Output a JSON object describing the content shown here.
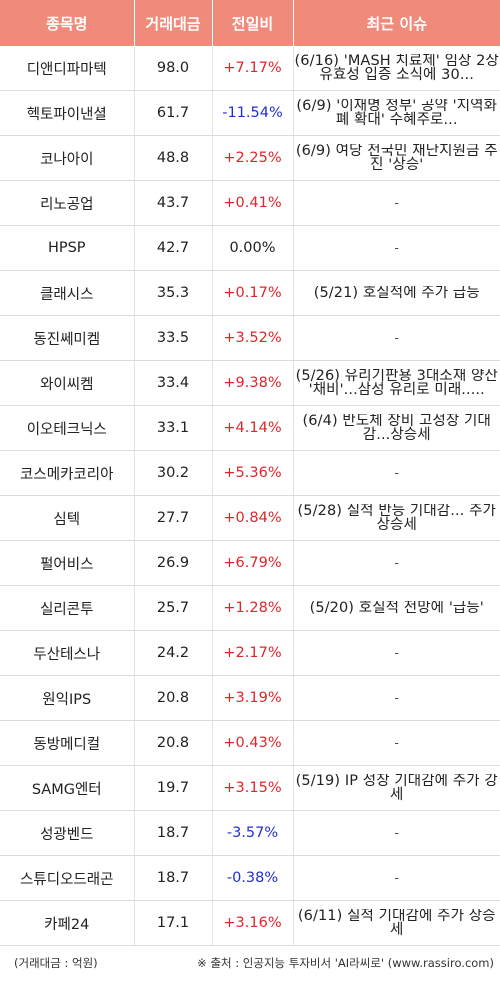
{
  "table": {
    "headers": [
      "종목명",
      "거래대금",
      "전일비",
      "최근 이슈"
    ],
    "rows": [
      {
        "name": "디앤디파마텍",
        "amount": "98.0",
        "change": "+7.17%",
        "dir": "up",
        "issue": "(6/16) 'MASH 치료제' 임상 2상 유효성 입증 소식에 30..."
      },
      {
        "name": "헥토파이낸셜",
        "amount": "61.7",
        "change": "-11.54%",
        "dir": "down",
        "issue": "(6/9) '이재명 정부' 공약 '지역화폐 확대' 수혜주로..."
      },
      {
        "name": "코나아이",
        "amount": "48.8",
        "change": "+2.25%",
        "dir": "up",
        "issue": "(6/9) 여당 전국민 재난지원금 추진 '상승'"
      },
      {
        "name": "리노공업",
        "amount": "43.7",
        "change": "+0.41%",
        "dir": "up",
        "issue": "-"
      },
      {
        "name": "HPSP",
        "amount": "42.7",
        "change": "0.00%",
        "dir": "flat",
        "issue": "-"
      },
      {
        "name": "클래시스",
        "amount": "35.3",
        "change": "+0.17%",
        "dir": "up",
        "issue": "(5/21) 호실적에 주가 급등"
      },
      {
        "name": "동진쎄미켐",
        "amount": "33.5",
        "change": "+3.52%",
        "dir": "up",
        "issue": "-"
      },
      {
        "name": "와이씨켐",
        "amount": "33.4",
        "change": "+9.38%",
        "dir": "up",
        "issue": "(5/26) 유리기판용 3대소재 양산 '채비'...삼성 유리로 미래....."
      },
      {
        "name": "이오테크닉스",
        "amount": "33.1",
        "change": "+4.14%",
        "dir": "up",
        "issue": "(6/4) 반도체 장비 고성장 기대감...상승세"
      },
      {
        "name": "코스메카코리아",
        "amount": "30.2",
        "change": "+5.36%",
        "dir": "up",
        "issue": "-"
      },
      {
        "name": "심텍",
        "amount": "27.7",
        "change": "+0.84%",
        "dir": "up",
        "issue": "(5/28) 실적 반등 기대감... 주가 상승세"
      },
      {
        "name": "펄어비스",
        "amount": "26.9",
        "change": "+6.79%",
        "dir": "up",
        "issue": "-"
      },
      {
        "name": "실리콘투",
        "amount": "25.7",
        "change": "+1.28%",
        "dir": "up",
        "issue": "(5/20) 호실적 전망에 '급등'"
      },
      {
        "name": "두산테스나",
        "amount": "24.2",
        "change": "+2.17%",
        "dir": "up",
        "issue": "-"
      },
      {
        "name": "원익IPS",
        "amount": "20.8",
        "change": "+3.19%",
        "dir": "up",
        "issue": "-"
      },
      {
        "name": "동방메디컬",
        "amount": "20.8",
        "change": "+0.43%",
        "dir": "up",
        "issue": "-"
      },
      {
        "name": "SAMG엔터",
        "amount": "19.7",
        "change": "+3.15%",
        "dir": "up",
        "issue": "(5/19) IP 성장 기대감에 주가 강세"
      },
      {
        "name": "성광벤드",
        "amount": "18.7",
        "change": "-3.57%",
        "dir": "down",
        "issue": "-"
      },
      {
        "name": "스튜디오드래곤",
        "amount": "18.7",
        "change": "-0.38%",
        "dir": "down",
        "issue": "-"
      },
      {
        "name": "카페24",
        "amount": "17.1",
        "change": "+3.16%",
        "dir": "up",
        "issue": "(6/11) 실적 기대감에 주가 상승세"
      }
    ]
  },
  "footer": {
    "unit_note": "(거래대금 : 억원)",
    "source_note": "※ 출처 : 인공지능 투자비서 'AI라씨로' (www.rassiro.com)"
  },
  "colors": {
    "header_bg": "#f08a7a",
    "up": "#e0252b",
    "down": "#2230c8"
  }
}
